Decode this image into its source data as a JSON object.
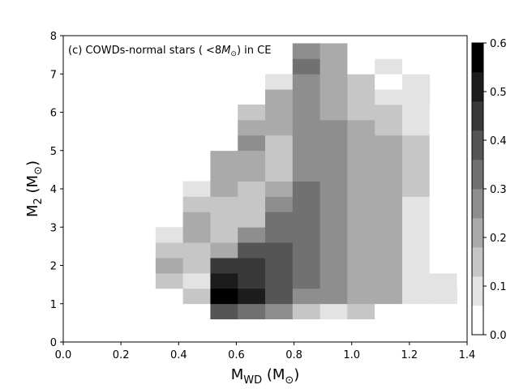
{
  "chart_data": {
    "type": "heatmap",
    "title": "(c) COWDs-normal stars ( $<8M_\\odot$) in CE",
    "xlabel": "M_WD (M_⊙)",
    "ylabel": "M_2 (M_⊙)",
    "xlim": [
      0.0,
      1.4
    ],
    "ylim": [
      0,
      8
    ],
    "x_ticks": [
      "0.0",
      "0.2",
      "0.4",
      "0.6",
      "0.8",
      "1.0",
      "1.2",
      "1.4"
    ],
    "y_ticks": [
      "0",
      "1",
      "2",
      "3",
      "4",
      "5",
      "6",
      "7",
      "8"
    ],
    "colorbar": {
      "range": [
        0.0,
        0.6
      ],
      "ticks": [
        "0.0",
        "0.1",
        "0.2",
        "0.3",
        "0.4",
        "0.5",
        "0.6"
      ],
      "levels": 10,
      "colormap": "greys"
    },
    "cell_width": 0.095,
    "cell_height": 0.4,
    "x_start": 0.32,
    "y_start": 0.6,
    "grid": false,
    "rows": [
      [
        null,
        null,
        0.4,
        0.34,
        0.24,
        0.12,
        0.08,
        0.12,
        0.02,
        null,
        null,
        null,
        null
      ],
      [
        0.02,
        0.16,
        0.58,
        0.52,
        0.37,
        0.27,
        0.27,
        0.21,
        0.19,
        0.07,
        0.06,
        null,
        null
      ],
      [
        0.15,
        0.07,
        0.52,
        0.47,
        0.37,
        0.34,
        0.27,
        0.21,
        0.19,
        0.07,
        0.06,
        0.04,
        null
      ],
      [
        0.19,
        0.12,
        0.42,
        0.43,
        0.37,
        0.34,
        0.27,
        0.21,
        0.19,
        0.07,
        0.05,
        null,
        null
      ],
      [
        0.14,
        0.15,
        0.19,
        0.41,
        0.36,
        0.34,
        0.27,
        0.21,
        0.19,
        0.07,
        0.05,
        null,
        null
      ],
      [
        0.1,
        0.19,
        0.15,
        0.28,
        0.34,
        0.35,
        0.27,
        0.21,
        0.19,
        0.07,
        0.02,
        null,
        null
      ],
      [
        null,
        0.19,
        0.15,
        0.12,
        0.33,
        0.35,
        0.27,
        0.21,
        0.19,
        0.09,
        0.02,
        null,
        null
      ],
      [
        null,
        0.16,
        0.15,
        0.14,
        0.24,
        0.33,
        0.27,
        0.21,
        0.19,
        0.09,
        0.02,
        null,
        null
      ],
      [
        null,
        0.06,
        0.19,
        0.16,
        0.21,
        0.32,
        0.27,
        0.21,
        0.19,
        0.16,
        0.02,
        null,
        null
      ],
      [
        null,
        null,
        0.19,
        0.19,
        0.16,
        0.28,
        0.27,
        0.21,
        0.19,
        0.16,
        0.02,
        null,
        null
      ],
      [
        null,
        null,
        0.19,
        0.19,
        0.16,
        0.28,
        0.27,
        0.21,
        0.19,
        0.16,
        0.02,
        null,
        null
      ],
      [
        null,
        null,
        0.04,
        0.26,
        0.16,
        0.28,
        0.27,
        0.21,
        0.19,
        0.16,
        0.02,
        null,
        null
      ],
      [
        null,
        null,
        null,
        0.19,
        0.21,
        0.28,
        0.27,
        0.21,
        0.17,
        0.07,
        0.02,
        null,
        null
      ],
      [
        null,
        null,
        null,
        0.14,
        0.23,
        0.28,
        0.23,
        0.14,
        0.14,
        0.09,
        0.02,
        null,
        null
      ],
      [
        null,
        null,
        null,
        null,
        0.21,
        0.28,
        0.23,
        0.14,
        0.08,
        0.09,
        null,
        null,
        null
      ],
      [
        null,
        null,
        null,
        null,
        0.1,
        0.28,
        0.21,
        0.12,
        0.04,
        0.1,
        null,
        null,
        null
      ],
      [
        null,
        null,
        null,
        null,
        null,
        0.3,
        0.19,
        0.04,
        0.06,
        0.04,
        null,
        null,
        null
      ],
      [
        null,
        null,
        null,
        null,
        null,
        0.28,
        0.19,
        0.04,
        0.04,
        0.04,
        null,
        null,
        null
      ]
    ]
  }
}
